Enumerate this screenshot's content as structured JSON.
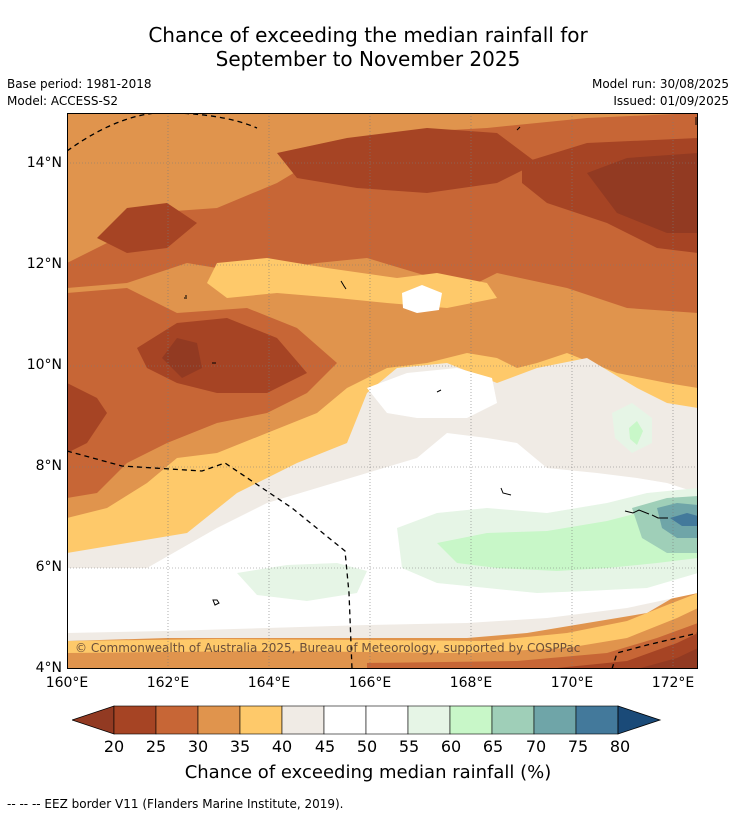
{
  "title": {
    "line1": "Chance of exceeding the median rainfall for",
    "line2": "September to November 2025"
  },
  "meta": {
    "base_period": "Base period: 1981-2018",
    "model": "Model: ACCESS-S2",
    "model_run": "Model run: 30/08/2025",
    "issued": "Issued: 01/09/2025"
  },
  "map": {
    "lat_ticks": [
      "14°N",
      "12°N",
      "10°N",
      "8°N",
      "6°N",
      "4°N"
    ],
    "lon_ticks": [
      "160°E",
      "162°E",
      "164°E",
      "166°E",
      "168°E",
      "170°E",
      "172°E"
    ],
    "lat_range": [
      4,
      15
    ],
    "lon_range": [
      160,
      172.5
    ],
    "copyright": "© Commonwealth of Australia 2025, Bureau of Meteorology, supported by COSPPac"
  },
  "colorbar": {
    "label": "Chance of exceeding median rainfall (%)",
    "ticks": [
      "20",
      "25",
      "30",
      "35",
      "40",
      "45",
      "50",
      "55",
      "60",
      "65",
      "70",
      "75",
      "80"
    ],
    "colors": [
      "#a64424",
      "#c76636",
      "#e0944d",
      "#fec96a",
      "#f0ebe5",
      "#ffffff",
      "#ffffff",
      "#e6f5e6",
      "#c8f7c8",
      "#9fcfb8",
      "#6fa5a8",
      "#43799b"
    ],
    "under_color": "#923a22",
    "over_color": "#1a4a78"
  },
  "footer": {
    "eez": "--  --  -- EEZ border V11 (Flanders Marine Institute, 2019)."
  }
}
